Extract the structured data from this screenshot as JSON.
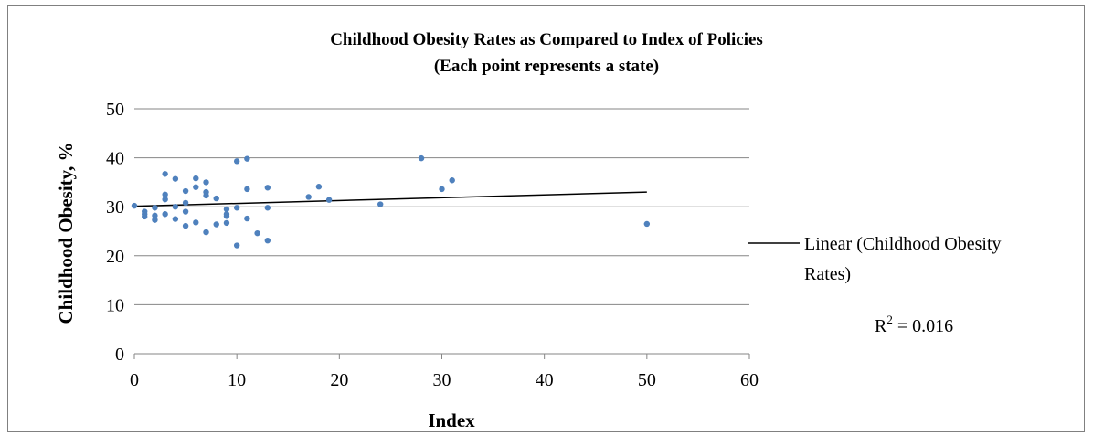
{
  "chart_data": {
    "type": "scatter",
    "title": "Childhood Obesity Rates as Compared to Index of Policies",
    "subtitle": "(Each point represents a state)",
    "xlabel": "Index",
    "ylabel": "Childhood Obesity, %",
    "xlim": [
      0,
      60
    ],
    "ylim": [
      0,
      50
    ],
    "xticks": [
      "0",
      "10",
      "20",
      "30",
      "40",
      "50",
      "60"
    ],
    "yticks": [
      "0",
      "10",
      "20",
      "30",
      "40",
      "50"
    ],
    "grid": "horizontal",
    "legend_position": "right",
    "marker_color": "#4F81BD",
    "trend_color": "#000000",
    "series": [
      {
        "x": [
          0,
          1,
          1,
          1,
          2,
          2,
          2,
          3,
          3,
          3,
          3,
          4,
          4,
          4,
          5,
          5,
          5,
          5,
          6,
          6,
          6,
          7,
          7,
          7,
          7,
          8,
          8,
          9,
          9,
          9,
          9,
          10,
          10,
          10,
          11,
          11,
          11,
          12,
          13,
          13,
          13,
          17,
          18,
          19,
          24,
          28,
          30,
          31,
          50
        ],
        "y": [
          30.2,
          29.0,
          28.5,
          28.0,
          29.8,
          28.2,
          27.3,
          36.7,
          32.5,
          31.5,
          28.5,
          35.7,
          30.0,
          27.5,
          33.2,
          30.8,
          29.0,
          26.1,
          35.8,
          34.0,
          26.8,
          35.0,
          33.0,
          32.3,
          24.8,
          31.7,
          26.4,
          29.5,
          28.5,
          28.1,
          26.7,
          39.3,
          29.8,
          22.1,
          39.8,
          33.6,
          27.6,
          24.6,
          33.9,
          29.8,
          23.1,
          32.0,
          34.1,
          31.4,
          30.5,
          39.9,
          33.6,
          35.4,
          26.5
        ]
      }
    ],
    "trendline": {
      "label": "Linear (Childhood Obesity Rates)",
      "label_line1": "Linear (Childhood Obesity",
      "label_line2": "Rates)",
      "r2_label": "R",
      "r2_value": "= 0.016",
      "x": [
        0,
        50
      ],
      "y": [
        30.1,
        33.0
      ]
    }
  }
}
